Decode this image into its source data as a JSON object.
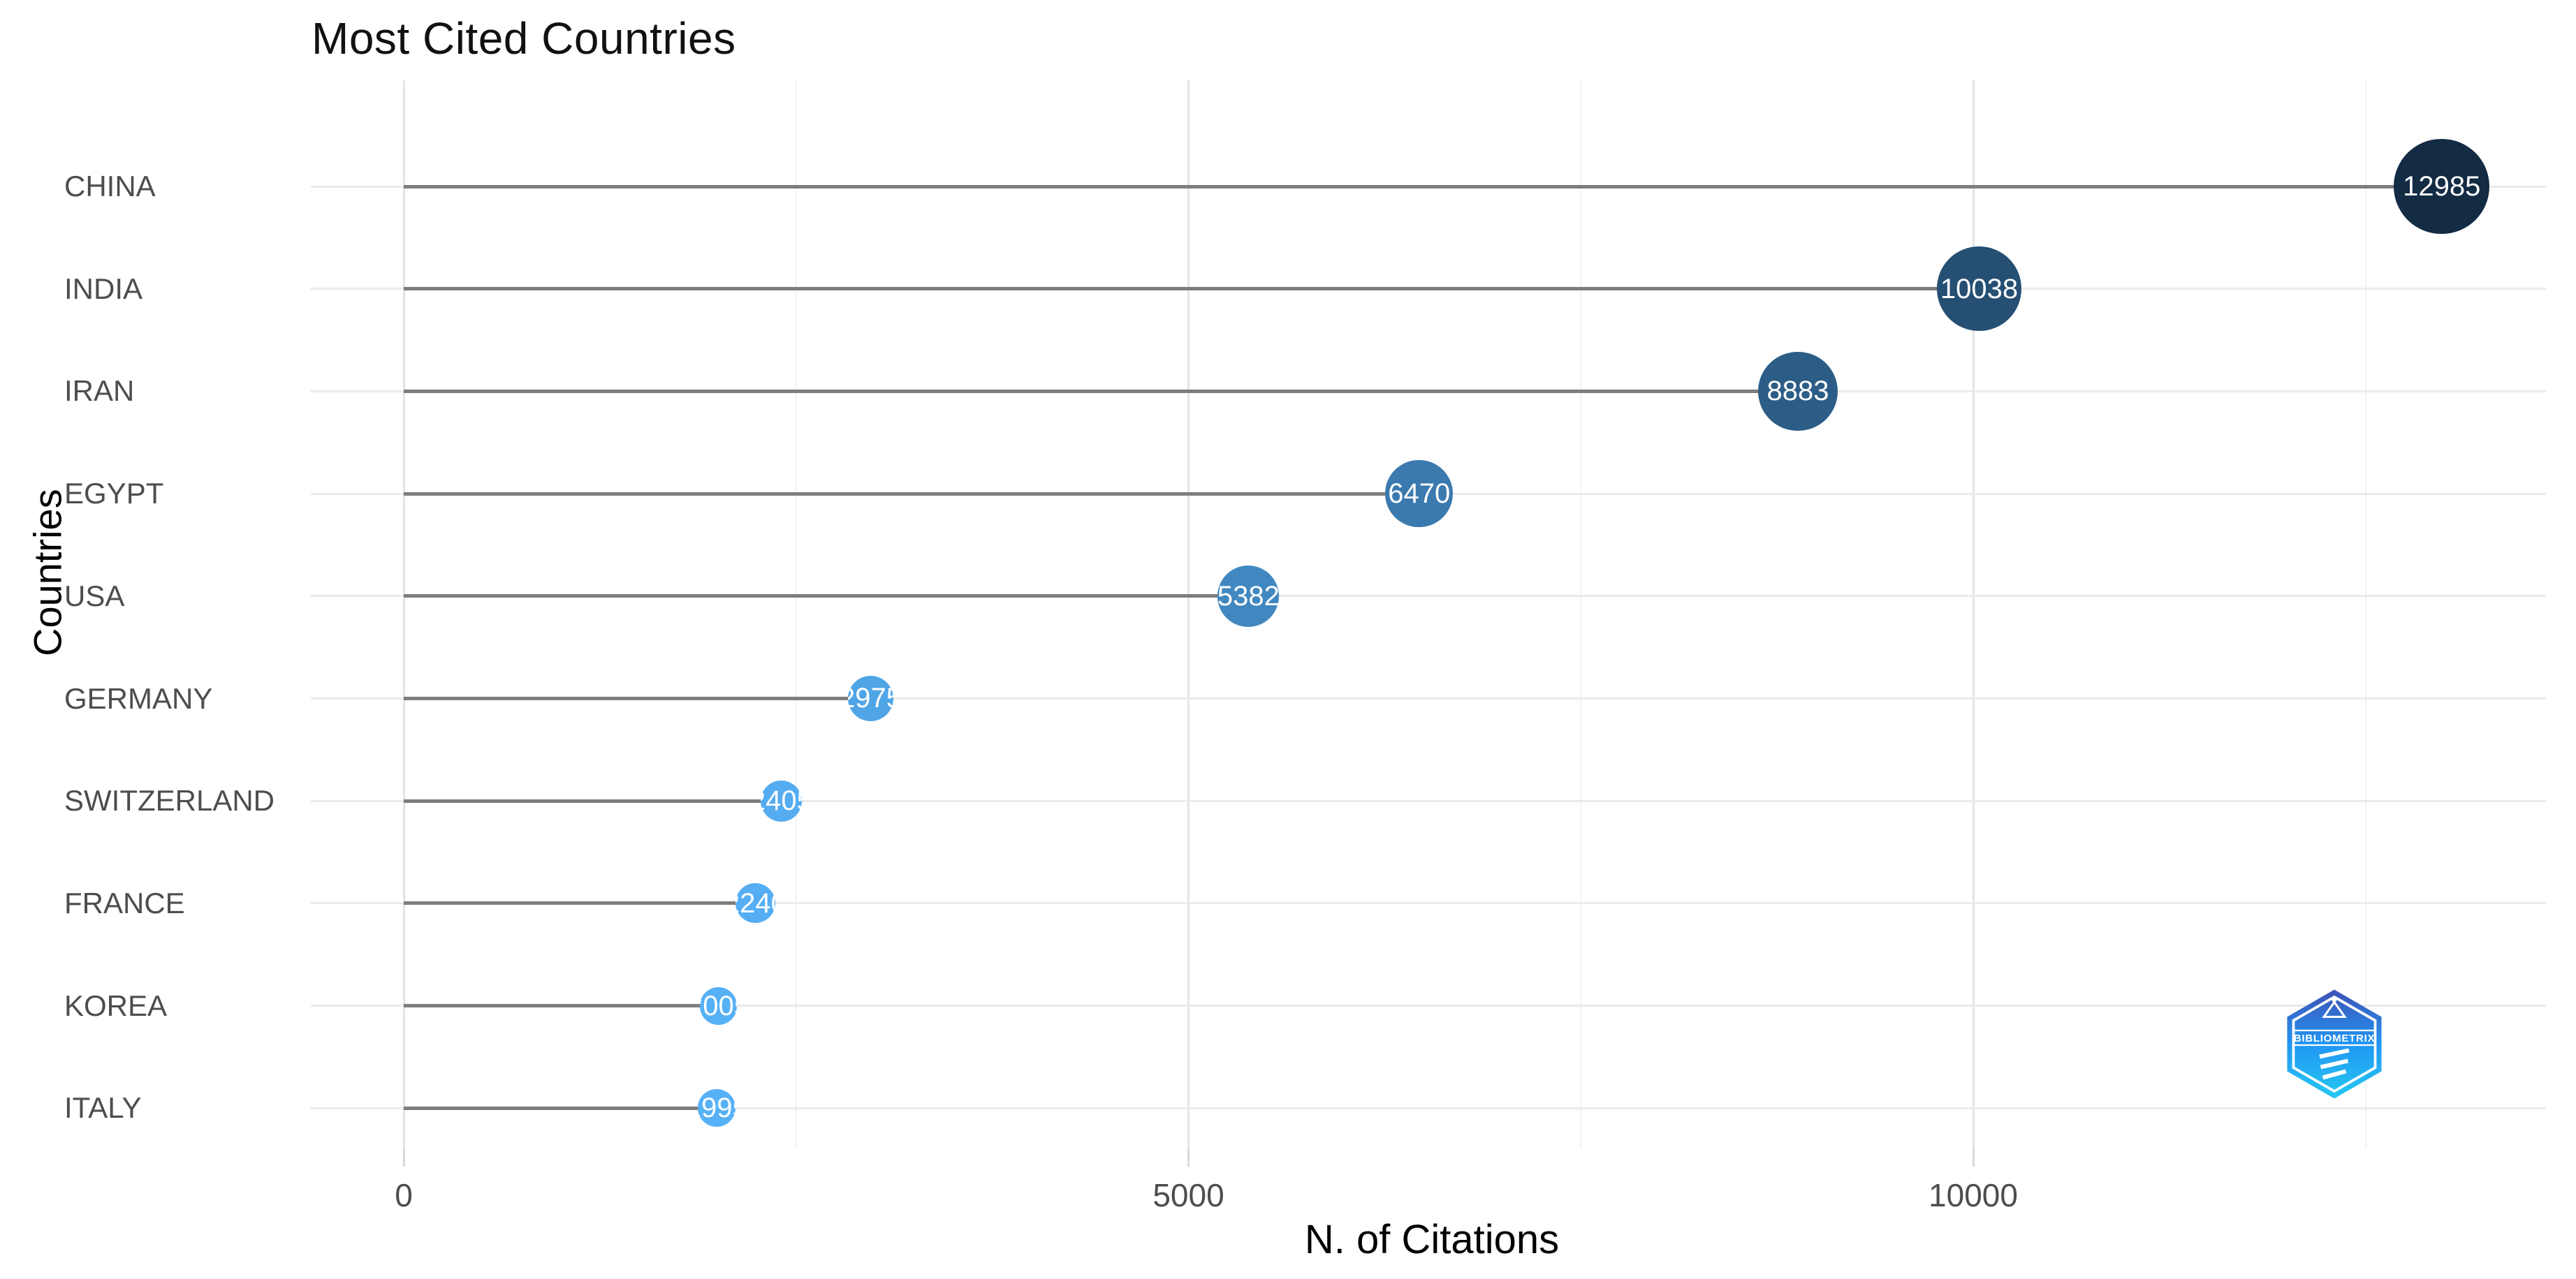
{
  "title": "Most Cited Countries",
  "chart_data": {
    "type": "scatter",
    "variant": "lollipop",
    "title": "Most Cited Countries",
    "xlabel": "N. of Citations",
    "ylabel": "Countries",
    "categories": [
      "CHINA",
      "INDIA",
      "IRAN",
      "EGYPT",
      "USA",
      "GERMANY",
      "SWITZERLAND",
      "FRANCE",
      "KOREA",
      "ITALY"
    ],
    "values": [
      12985,
      10038,
      8883,
      6470,
      5382,
      2975,
      2405,
      2240,
      2005,
      1995
    ],
    "point_colors": [
      "#132B43",
      "#254F73",
      "#2C5D86",
      "#3B7AAE",
      "#4188C0",
      "#50A5E7",
      "#55ACF0",
      "#55AEF3",
      "#56B0F6",
      "#56B1F7"
    ],
    "point_label_color": "#ffffff",
    "x_ticks": [
      0,
      5000,
      10000
    ],
    "x_tick_labels": [
      "0",
      "5000",
      "10000"
    ],
    "x_minor_gridlines": [
      2500,
      7500,
      12500
    ],
    "xlim": [
      0,
      13700
    ],
    "grid": "on",
    "legend": "none",
    "stem_color": "#7d7d7d",
    "gridline_color": "#ebebeb"
  },
  "logo": {
    "name": "bibliometrix-logo",
    "text": "BIBLIOMETRIX",
    "gradient_top": "#3f51b5",
    "gradient_mid": "#2196f3",
    "gradient_bottom": "#26c9f2"
  }
}
